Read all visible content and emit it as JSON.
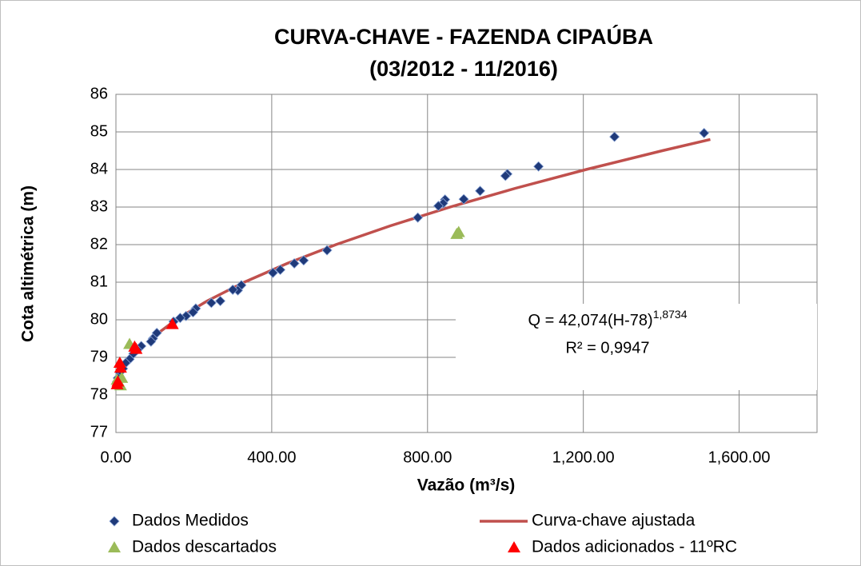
{
  "chart_data": {
    "type": "scatter",
    "title": "CURVA-CHAVE - FAZENDA CIPAÚBA",
    "subtitle": "(03/2012 - 11/2016)",
    "x_label": "Vazão (m³/s)",
    "y_label": "Cota altimétrica (m)",
    "xlim": [
      0,
      1800
    ],
    "ylim": [
      77,
      86
    ],
    "xticks": [
      {
        "value": 0,
        "label": "0.00"
      },
      {
        "value": 400,
        "label": "400.00"
      },
      {
        "value": 800,
        "label": "800.00"
      },
      {
        "value": 1200,
        "label": "1,200.00"
      },
      {
        "value": 1600,
        "label": "1,600.00"
      }
    ],
    "yticks": [
      77,
      78,
      79,
      80,
      81,
      82,
      83,
      84,
      85,
      86
    ],
    "grid": true,
    "series": [
      {
        "name": "Dados Medidos",
        "color": "#1f3a7a",
        "marker": "diamond",
        "x": [
          1510,
          1280,
          1085,
          1005,
          1000,
          935,
          893,
          845,
          840,
          828,
          775,
          542,
          482,
          458,
          422,
          403,
          322,
          313,
          300,
          268,
          245,
          205,
          198,
          180,
          165,
          148,
          105,
          95,
          90,
          65,
          55,
          45,
          35,
          25,
          18,
          10,
          5,
          3
        ],
        "values": [
          84.97,
          84.87,
          84.08,
          83.88,
          83.83,
          83.43,
          83.21,
          83.2,
          83.1,
          83.03,
          82.72,
          81.85,
          81.58,
          81.5,
          81.33,
          81.25,
          80.92,
          80.78,
          80.8,
          80.5,
          80.45,
          80.3,
          80.2,
          80.1,
          80.05,
          79.95,
          79.65,
          79.5,
          79.42,
          79.3,
          79.2,
          79.1,
          78.95,
          78.85,
          78.7,
          78.6,
          78.45,
          78.35
        ]
      },
      {
        "name": "Curva-chave ajustada",
        "color": "#c0504d",
        "marker": "line",
        "x": [
          89.93,
          154.2,
          234.2,
          329.5,
          439.8,
          564.8,
          704.3,
          857.9,
          1025.8,
          1207.5,
          1402.8,
          1526
        ],
        "values": [
          79.5,
          80,
          80.5,
          81,
          81.5,
          82,
          82.5,
          83,
          83.5,
          84,
          84.5,
          84.8
        ]
      },
      {
        "name": "Dados descartados",
        "color": "#9bbb59",
        "marker": "triangle",
        "x": [
          880,
          875,
          35,
          15,
          8,
          12,
          3
        ],
        "values": [
          82.33,
          82.28,
          79.35,
          78.45,
          78.3,
          78.25,
          78.4
        ]
      },
      {
        "name": "Dados adicionados - 11ºRC",
        "color": "#ff0000",
        "marker": "triangle",
        "x": [
          145,
          52,
          48,
          10,
          12,
          5,
          3
        ],
        "values": [
          79.88,
          79.22,
          79.28,
          78.85,
          78.72,
          78.35,
          78.28
        ]
      }
    ],
    "annotation": {
      "equation": "Q = 42,074(H-78)",
      "exponent": "1,8734",
      "r2": "R² = 0,9947"
    }
  }
}
